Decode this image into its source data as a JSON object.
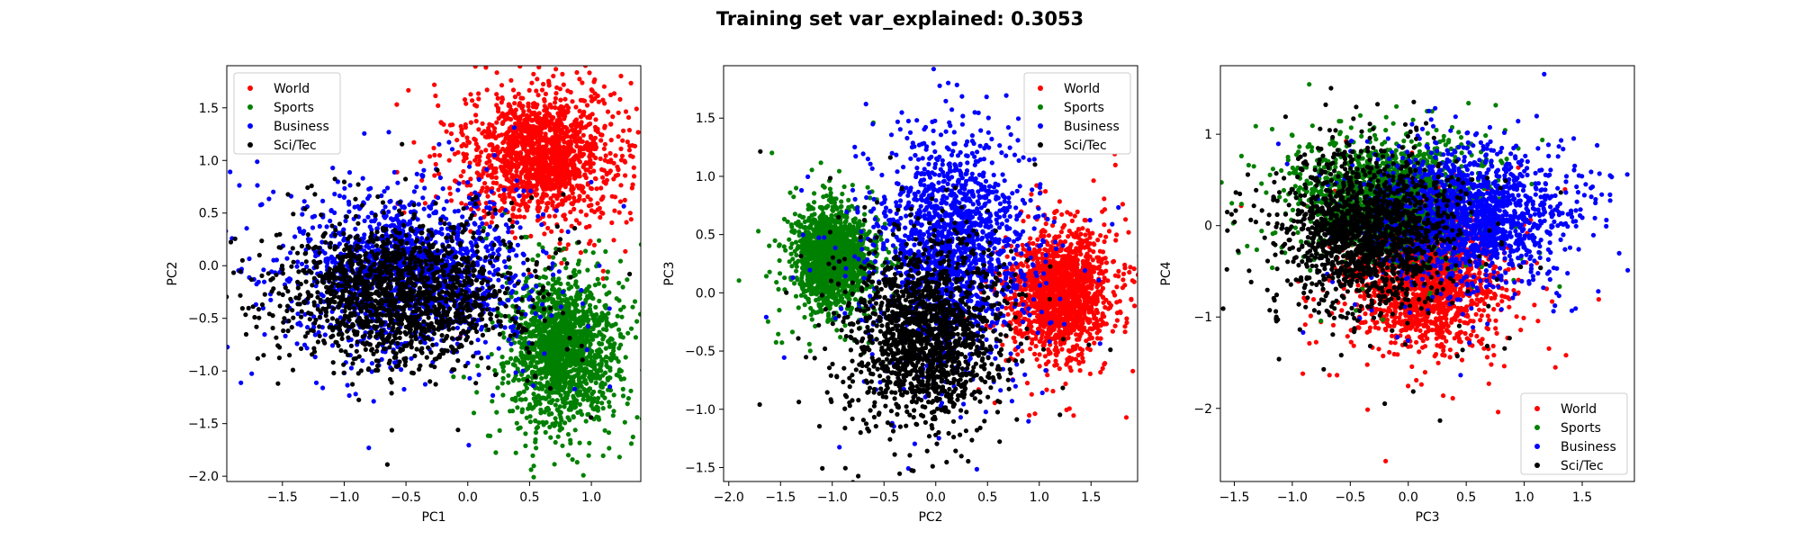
{
  "figure": {
    "title": "Training set var_explained: 0.3053"
  },
  "chart_data": [
    {
      "type": "scatter",
      "xlabel": "PC1",
      "ylabel": "PC2",
      "xlim": [
        -1.95,
        1.4
      ],
      "ylim": [
        -2.05,
        1.9
      ],
      "xticks": [
        -1.5,
        -1.0,
        -0.5,
        0.0,
        0.5,
        1.0
      ],
      "yticks": [
        -2.0,
        -1.5,
        -1.0,
        -0.5,
        0.0,
        0.5,
        1.0,
        1.5
      ],
      "legend": "upper-left",
      "series": [
        {
          "name": "World",
          "color": "#ff0000",
          "center": [
            0.6,
            1.05
          ],
          "spread": [
            0.28,
            0.28
          ]
        },
        {
          "name": "Sports",
          "color": "#008000",
          "center": [
            0.75,
            -0.8
          ],
          "spread": [
            0.2,
            0.33
          ]
        },
        {
          "name": "Business",
          "color": "#0000ff",
          "center": [
            -0.45,
            -0.05
          ],
          "spread": [
            0.45,
            0.35
          ]
        },
        {
          "name": "Sci/Tec",
          "color": "#000000",
          "center": [
            -0.55,
            -0.25
          ],
          "spread": [
            0.45,
            0.32
          ]
        }
      ]
    },
    {
      "type": "scatter",
      "xlabel": "PC2",
      "ylabel": "PC3",
      "xlim": [
        -2.05,
        1.95
      ],
      "ylim": [
        -1.62,
        1.95
      ],
      "xticks": [
        -2.0,
        -1.5,
        -1.0,
        -0.5,
        0.0,
        0.5,
        1.0,
        1.5
      ],
      "yticks": [
        -1.5,
        -1.0,
        -0.5,
        0.0,
        0.5,
        1.0,
        1.5
      ],
      "legend": "upper-right",
      "series": [
        {
          "name": "World",
          "color": "#ff0000",
          "center": [
            1.2,
            0.0
          ],
          "spread": [
            0.22,
            0.25
          ]
        },
        {
          "name": "Sports",
          "color": "#008000",
          "center": [
            -1.0,
            0.3
          ],
          "spread": [
            0.17,
            0.2
          ]
        },
        {
          "name": "Business",
          "color": "#0000ff",
          "center": [
            0.15,
            0.4
          ],
          "spread": [
            0.35,
            0.45
          ]
        },
        {
          "name": "Sci/Tec",
          "color": "#000000",
          "center": [
            -0.1,
            -0.35
          ],
          "spread": [
            0.35,
            0.35
          ]
        }
      ]
    },
    {
      "type": "scatter",
      "xlabel": "PC3",
      "ylabel": "PC4",
      "xlim": [
        -1.62,
        1.95
      ],
      "ylim": [
        -2.8,
        1.75
      ],
      "xticks": [
        -1.5,
        -1.0,
        -0.5,
        0.0,
        0.5,
        1.0,
        1.5
      ],
      "yticks": [
        -2,
        -1,
        0,
        1
      ],
      "legend": "lower-right",
      "series": [
        {
          "name": "World",
          "color": "#ff0000",
          "center": [
            0.15,
            -0.6
          ],
          "spread": [
            0.3,
            0.35
          ]
        },
        {
          "name": "Sports",
          "color": "#008000",
          "center": [
            -0.2,
            0.3
          ],
          "spread": [
            0.35,
            0.3
          ]
        },
        {
          "name": "Business",
          "color": "#0000ff",
          "center": [
            0.55,
            0.1
          ],
          "spread": [
            0.4,
            0.35
          ]
        },
        {
          "name": "Sci/Tec",
          "color": "#000000",
          "center": [
            -0.35,
            -0.05
          ],
          "spread": [
            0.35,
            0.4
          ]
        }
      ]
    }
  ]
}
